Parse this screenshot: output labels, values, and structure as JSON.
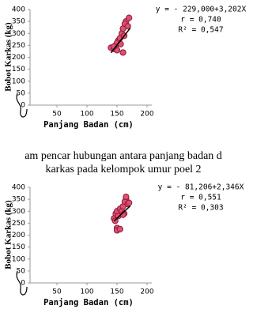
{
  "chart_data": [
    {
      "type": "scatter",
      "x_label": "Panjang Badan (cm)",
      "y_label": "Bobot Karkas (kg)",
      "annotations": [
        "y = - 229,000+3,202X",
        "r = 0,740",
        "R² = 0,547"
      ],
      "xlim": [
        0,
        200
      ],
      "xticks": [
        50,
        100,
        150,
        200
      ],
      "ylim": [
        0,
        400
      ],
      "yticks": [
        0,
        50,
        100,
        150,
        200,
        250,
        300,
        350,
        400
      ],
      "color": "#e0506e",
      "edge_color": "#8b1a3a",
      "x": [
        140,
        145,
        148,
        150,
        152,
        155,
        150,
        158,
        160,
        162,
        165,
        163,
        168,
        160,
        170,
        145,
        156
      ],
      "values": [
        240,
        235,
        250,
        230,
        270,
        280,
        260,
        300,
        320,
        290,
        350,
        340,
        330,
        220,
        365,
        245,
        255
      ],
      "trend": {
        "x": [
          140,
          172
        ],
        "values": [
          219,
          322
        ]
      }
    },
    {
      "type": "scatter",
      "x_label": "Panjang Badan (cm)",
      "y_label": "Bobot Karkas (kg)",
      "annotations": [
        "y = - 81,206+2,346X",
        "r = 0,551",
        "R² = 0,303"
      ],
      "xlim": [
        0,
        200
      ],
      "xticks": [
        50,
        100,
        150,
        200
      ],
      "ylim": [
        0,
        400
      ],
      "yticks": [
        0,
        50,
        100,
        150,
        200,
        250,
        300,
        350,
        400
      ],
      "color": "#e0506e",
      "edge_color": "#8b1a3a",
      "x": [
        145,
        148,
        150,
        152,
        155,
        150,
        158,
        160,
        162,
        165,
        163,
        168,
        150,
        155,
        165,
        147,
        160,
        170
      ],
      "values": [
        270,
        290,
        300,
        280,
        310,
        230,
        300,
        320,
        290,
        350,
        340,
        330,
        220,
        225,
        360,
        260,
        285,
        335
      ],
      "trend": {
        "x": [
          145,
          172
        ],
        "values": [
          259,
          322
        ]
      }
    }
  ],
  "captions": [
    "am pencar hubungan antara panjang badan d",
    "karkas pada kelompok umur poel 2"
  ]
}
